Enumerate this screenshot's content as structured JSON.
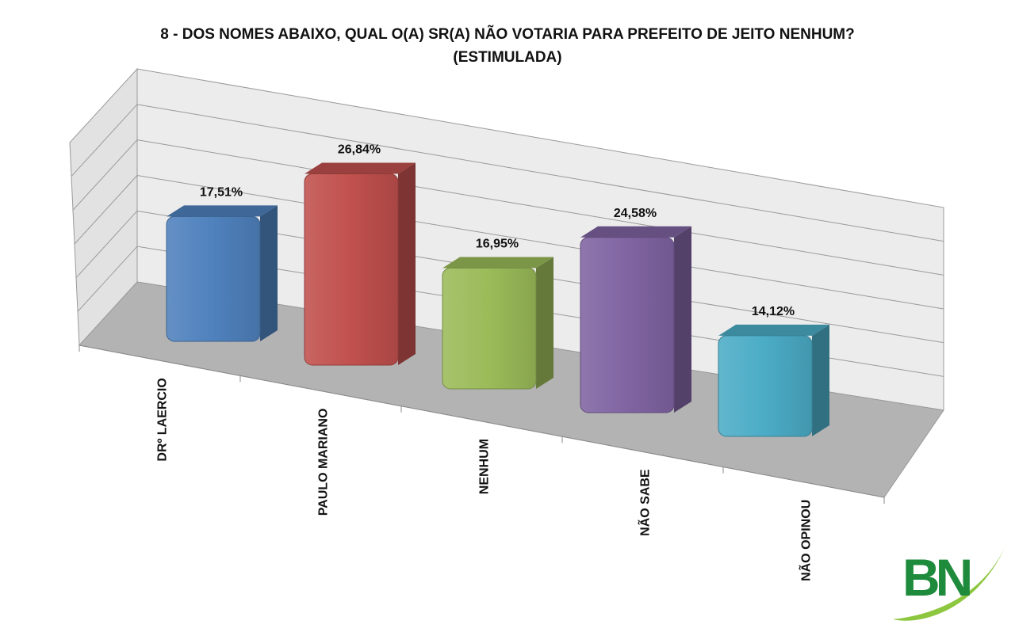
{
  "chart_data": {
    "type": "bar",
    "title": "8 - DOS NOMES ABAIXO, QUAL O(A) SR(A) NÃO VOTARIA PARA PREFEITO DE JEITO NENHUM?",
    "subtitle": "(ESTIMULADA)",
    "categories": [
      "DRº LAERCIO",
      "PAULO MARIANO",
      "NENHUM",
      "NÃO SABE",
      "NÃO OPINOU"
    ],
    "values": [
      17.51,
      26.84,
      16.95,
      24.58,
      14.12
    ],
    "value_labels": [
      "17,51%",
      "26,84%",
      "16,95%",
      "24,58%",
      "14,12%"
    ],
    "colors": [
      "#4f81bd",
      "#c0504d",
      "#9bbb59",
      "#8064a2",
      "#4bacc6"
    ],
    "ylim": [
      0,
      30
    ],
    "grid": true,
    "style": "3d-column"
  },
  "logo": {
    "text": "BN",
    "color": "#1e8a3c",
    "swoosh_color": "#8dc63f"
  }
}
